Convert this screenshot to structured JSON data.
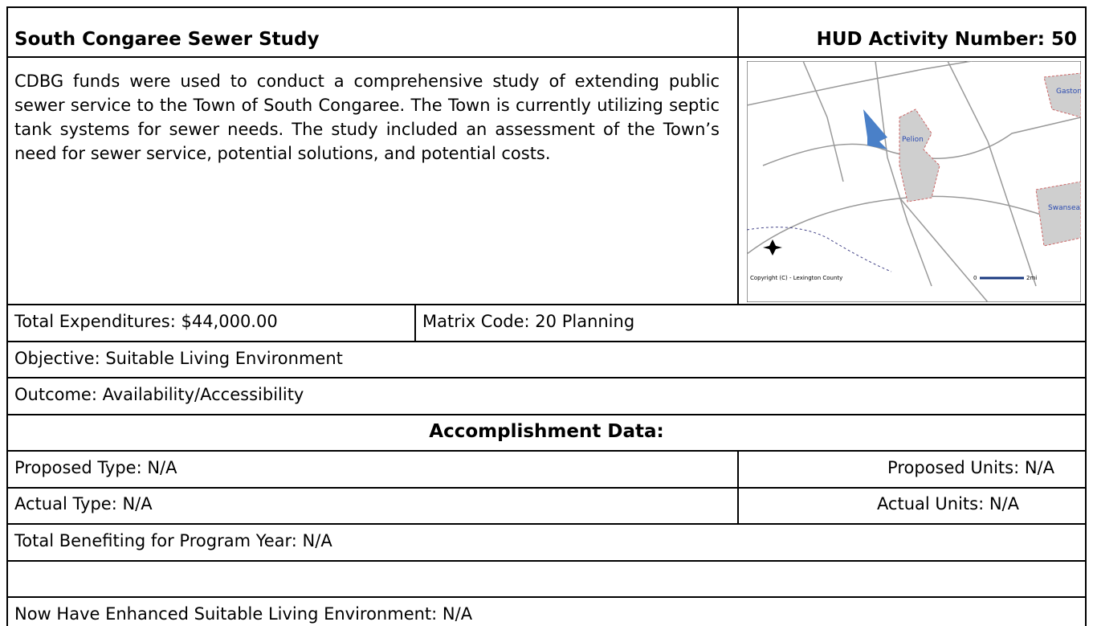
{
  "header": {
    "title": "South Congaree Sewer Study",
    "activity": "HUD Activity Number: 50"
  },
  "description": "CDBG funds were used to conduct a comprehensive study of extending public sewer service to the Town of South Congaree. The Town is currently utilizing septic tank systems for sewer needs.  The study included an assessment of the Town’s need for sewer service, potential solutions, and potential costs.",
  "map": {
    "labels": [
      "Pelion",
      "Gaston",
      "Swansea"
    ],
    "copyright": "Copyright (C) - Lexington County",
    "scale_start": "0",
    "scale_end": "2mi"
  },
  "fields": {
    "expenditures": "Total Expenditures:  $44,000.00",
    "matrix_code": "Matrix Code:  20 Planning",
    "objective": "Objective:  Suitable Living Environment",
    "outcome": "Outcome:   Availability/Accessibility"
  },
  "accomplishment": {
    "heading": "Accomplishment Data:",
    "proposed_type": "Proposed Type:   N/A",
    "proposed_units": "Proposed Units:   N/A",
    "actual_type": "Actual Type:   N/A",
    "actual_units": "Actual Units:   N/A",
    "total_benefiting": "Total Benefiting for Program Year:   N/A",
    "enhanced": "Now Have Enhanced Suitable Living Environment:  N/A"
  }
}
